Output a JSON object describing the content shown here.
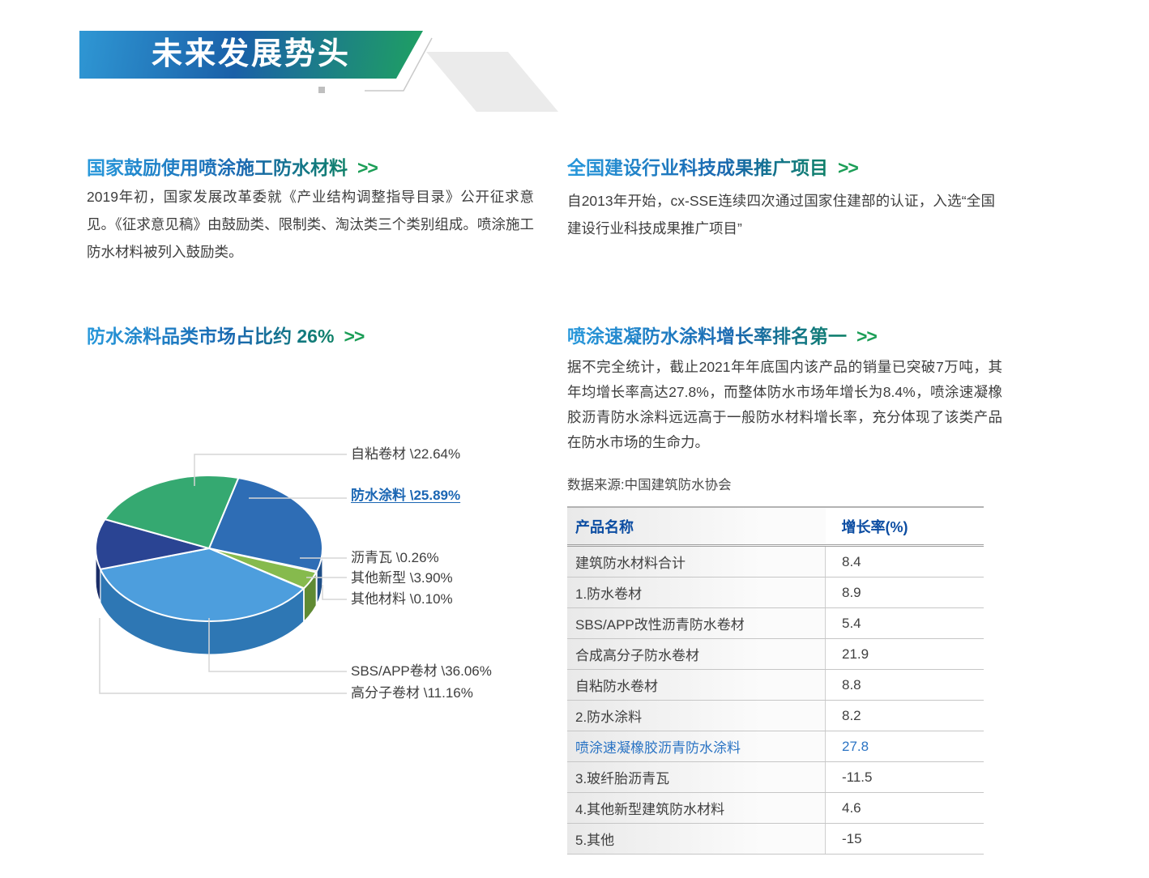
{
  "banner": {
    "title": "未来发展势头"
  },
  "sections": {
    "policy": {
      "title": "国家鼓励使用喷涂施工防水材料",
      "arrow": ">>",
      "body": "2019年初，国家发展改革委就《产业结构调整指导目录》公开征求意见。《征求意见稿》由鼓励类、限制类、淘汰类三个类别组成。喷涂施工防水材料被列入鼓励类。"
    },
    "promotion": {
      "title": "全国建设行业科技成果推广项目",
      "arrow": ">>",
      "body": "自2013年开始，cx-SSE连续四次通过国家住建部的认证，入选“全国建设行业科技成果推广项目”"
    },
    "market": {
      "title": "防水涂料品类市场占比约 26%",
      "arrow": ">>"
    },
    "growth": {
      "title": "喷涂速凝防水涂料增长率排名第一",
      "arrow": ">>",
      "body": "据不完全统计，截止2021年年底国内该产品的销量已突破7万吨，其年均增长率高达27.8%，而整体防水市场年增长为8.4%，喷涂速凝橡胶沥青防水涂料远远高于一般防水材料增长率，充分体现了该类产品在防水市场的生命力。",
      "source": "数据来源:中国建筑防水协会"
    }
  },
  "chart_data": {
    "type": "pie",
    "title": "防水涂料品类市场占比约 26%",
    "unit": "%",
    "labels": [
      "自粘卷材",
      "防水涂料",
      "沥青瓦",
      "其他新型",
      "其他材料",
      "SBS/APP卷材",
      "高分子卷材"
    ],
    "values": [
      22.64,
      25.89,
      0.26,
      3.9,
      0.1,
      36.06,
      11.16
    ],
    "start_angle_deg_cw_from_top": 15,
    "slices": [
      {
        "label": "防水涂料",
        "value": 25.89,
        "display": "防水涂料 \\25.89%",
        "color": "#2e6db5",
        "side": "#1f4e87",
        "highlight": true
      },
      {
        "label": "沥青瓦",
        "value": 0.26,
        "display": "沥青瓦 \\0.26%",
        "color": "#f5a54a",
        "side": "#c77f2e"
      },
      {
        "label": "其他新型",
        "value": 3.9,
        "display": "其他新型 \\3.90%",
        "color": "#86ba4d",
        "side": "#5f8a33"
      },
      {
        "label": "其他材料",
        "value": 0.1,
        "display": "其他材料 \\0.10%",
        "color": "#cdd3da",
        "side": "#9aa1aa"
      },
      {
        "label": "SBS/APP卷材",
        "value": 36.06,
        "display": "SBS/APP卷材 \\36.06%",
        "color": "#4d9edd",
        "side": "#2e77b4"
      },
      {
        "label": "高分子卷材",
        "value": 11.16,
        "display": "高分子卷材 \\11.16%",
        "color": "#2a4493",
        "side": "#1a2d68"
      },
      {
        "label": "自粘卷材",
        "value": 22.64,
        "display": "自粘卷材 \\22.64%",
        "color": "#35a971",
        "side": "#237a4f"
      }
    ]
  },
  "table": {
    "headers": [
      "产品名称",
      "增长率(%)"
    ],
    "rows": [
      [
        "建筑防水材料合计",
        "8.4"
      ],
      [
        "1.防水卷材",
        "8.9"
      ],
      [
        "SBS/APP改性沥青防水卷材",
        "5.4"
      ],
      [
        "合成高分子防水卷材",
        "21.9"
      ],
      [
        "自粘防水卷材",
        "8.8"
      ],
      [
        "2.防水涂料",
        "8.2"
      ],
      [
        "喷涂速凝橡胶沥青防水涂料",
        "27.8"
      ],
      [
        "3.玻纤胎沥青瓦",
        "-11.5"
      ],
      [
        "4.其他新型建筑防水材料",
        "4.6"
      ],
      [
        "5.其他",
        "-15"
      ]
    ],
    "highlight_row_index": 6
  },
  "colors": {
    "banner_gradient": [
      "#2f97d4",
      "#1a60a8",
      "#1fa161"
    ],
    "title_gradient": [
      "#2798db",
      "#1a68b0",
      "#0f8168"
    ],
    "arrow_green": "#1c9e57",
    "table_header_blue": "#0c4da2",
    "highlight_blue": "#2b74c4",
    "body_text": "#3e3e3e"
  }
}
